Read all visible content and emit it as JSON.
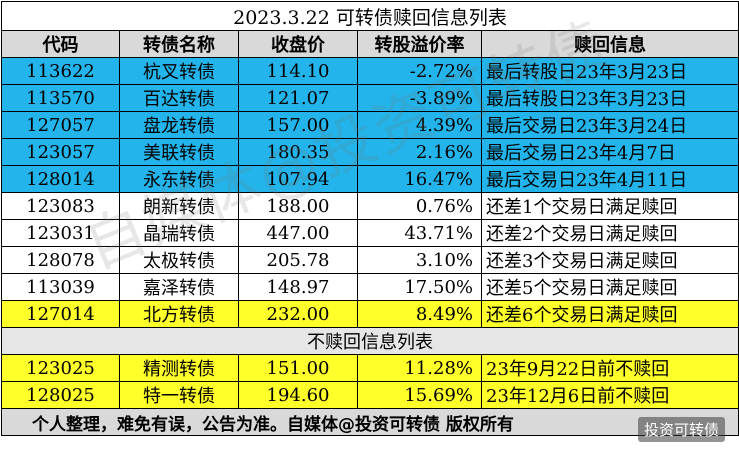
{
  "title": "2023.3.22 可转债赎回信息列表",
  "headers": [
    "代码",
    "转债名称",
    "收盘价",
    "转股溢价率",
    "赎回信息"
  ],
  "rows": [
    {
      "code": "113622",
      "name": "杭叉转债",
      "price": "114.10",
      "premium": "-2.72%",
      "info": "最后转股日23年3月23日",
      "color": "blue"
    },
    {
      "code": "113570",
      "name": "百达转债",
      "price": "121.07",
      "premium": "-3.89%",
      "info": "最后转股日23年3月23日",
      "color": "blue"
    },
    {
      "code": "127057",
      "name": "盘龙转债",
      "price": "157.00",
      "premium": "4.39%",
      "info": "最后交易日23年3月24日",
      "color": "blue"
    },
    {
      "code": "123057",
      "name": "美联转债",
      "price": "180.35",
      "premium": "2.16%",
      "info": "最后交易日23年4月7日",
      "color": "blue"
    },
    {
      "code": "128014",
      "name": "永东转债",
      "price": "107.94",
      "premium": "16.47%",
      "info": "最后交易日23年4月11日",
      "color": "blue"
    },
    {
      "code": "123083",
      "name": "朗新转债",
      "price": "188.00",
      "premium": "0.76%",
      "info": "还差1个交易日满足赎回",
      "color": "white"
    },
    {
      "code": "123031",
      "name": "晶瑞转债",
      "price": "447.00",
      "premium": "43.71%",
      "info": "还差2个交易日满足赎回",
      "color": "white"
    },
    {
      "code": "128078",
      "name": "太极转债",
      "price": "205.78",
      "premium": "3.10%",
      "info": "还差3个交易日满足赎回",
      "color": "white"
    },
    {
      "code": "113039",
      "name": "嘉泽转债",
      "price": "148.97",
      "premium": "17.50%",
      "info": "还差5个交易日满足赎回",
      "color": "white"
    },
    {
      "code": "127014",
      "name": "北方转债",
      "price": "232.00",
      "premium": "8.49%",
      "info": "还差6个交易日满足赎回",
      "color": "yellow"
    }
  ],
  "section2_title": "不赎回信息列表",
  "rows2": [
    {
      "code": "123025",
      "name": "精测转债",
      "price": "151.00",
      "premium": "11.28%",
      "info": "23年9月22日前不赎回",
      "color": "yellow"
    },
    {
      "code": "128025",
      "name": "特一转债",
      "price": "194.60",
      "premium": "15.69%",
      "info": "23年12月6日前不赎回",
      "color": "yellow"
    }
  ],
  "footer": "个人整理，难免有误，公告为准。自媒体@投资可转债 版权所有",
  "watermark": "自媒体@投资可转债",
  "badge": "投资可转债",
  "colors": {
    "blue": "#22b4ea",
    "yellow": "#ffff2a",
    "header": "#d9d9d9"
  }
}
